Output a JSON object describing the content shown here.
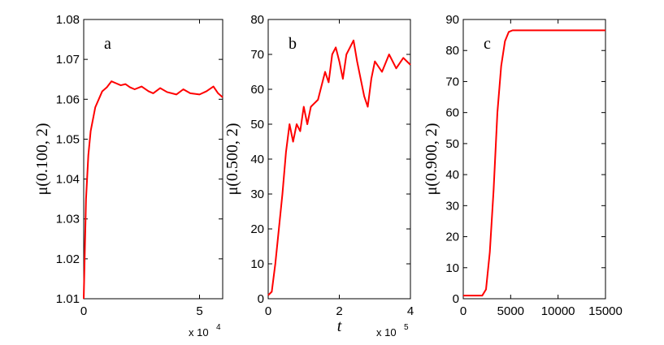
{
  "chart_data": [
    {
      "type": "line",
      "panel_label": "a",
      "ylabel": "μ(0.100, 2)",
      "color": "#ff0000",
      "x": [
        0,
        1000,
        2000,
        3000,
        5000,
        8000,
        10000,
        12000,
        14000,
        16000,
        18000,
        20000,
        22000,
        25000,
        28000,
        30000,
        33000,
        36000,
        40000,
        43000,
        46000,
        50000,
        53000,
        56000,
        58000,
        60000
      ],
      "values": [
        1.01,
        1.035,
        1.046,
        1.052,
        1.058,
        1.062,
        1.063,
        1.0645,
        1.064,
        1.0635,
        1.0638,
        1.063,
        1.0625,
        1.0632,
        1.062,
        1.0615,
        1.0628,
        1.0618,
        1.0612,
        1.0625,
        1.0615,
        1.0612,
        1.062,
        1.0632,
        1.0615,
        1.0605
      ],
      "xlim": [
        0,
        60000
      ],
      "ylim": [
        1.01,
        1.08
      ],
      "xticks": [
        0,
        {
          "value": 50000,
          "label": "5"
        }
      ],
      "yticks": [
        1.01,
        1.02,
        1.03,
        1.04,
        1.05,
        1.06,
        1.07,
        1.08
      ],
      "x_multiplier": {
        "base": "x 10",
        "exponent": "4"
      }
    },
    {
      "type": "line",
      "panel_label": "b",
      "ylabel": "μ(0.500, 2)",
      "xlabel": "t",
      "color": "#ff0000",
      "x": [
        0,
        10000,
        20000,
        30000,
        40000,
        50000,
        60000,
        70000,
        80000,
        90000,
        100000,
        110000,
        120000,
        140000,
        160000,
        170000,
        180000,
        190000,
        200000,
        210000,
        220000,
        230000,
        240000,
        250000,
        260000,
        270000,
        280000,
        290000,
        300000,
        320000,
        340000,
        360000,
        380000,
        400000
      ],
      "values": [
        1,
        2,
        10,
        20,
        30,
        42,
        50,
        45,
        50,
        48,
        55,
        50,
        55,
        57,
        65,
        62,
        70,
        72,
        68,
        63,
        70,
        72,
        74,
        68,
        63,
        58,
        55,
        63,
        68,
        65,
        70,
        66,
        69,
        67
      ],
      "xlim": [
        0,
        400000
      ],
      "ylim": [
        0,
        80
      ],
      "xticks": [
        0,
        {
          "value": 200000,
          "label": "2"
        },
        {
          "value": 400000,
          "label": "4"
        }
      ],
      "yticks": [
        0,
        10,
        20,
        30,
        40,
        50,
        60,
        70,
        80
      ],
      "x_multiplier": {
        "base": "x 10",
        "exponent": "5"
      }
    },
    {
      "type": "line",
      "panel_label": "c",
      "ylabel": "μ(0.900, 2)",
      "color": "#ff0000",
      "x": [
        0,
        2000,
        2400,
        2800,
        3200,
        3600,
        4000,
        4400,
        4800,
        5200,
        15000
      ],
      "values": [
        1,
        1,
        3,
        15,
        35,
        60,
        75,
        83,
        86,
        86.5,
        86.5
      ],
      "xlim": [
        0,
        15000
      ],
      "ylim": [
        0,
        90
      ],
      "xticks": [
        0,
        5000,
        10000,
        15000
      ],
      "yticks": [
        0,
        10,
        20,
        30,
        40,
        50,
        60,
        70,
        80,
        90
      ]
    }
  ]
}
